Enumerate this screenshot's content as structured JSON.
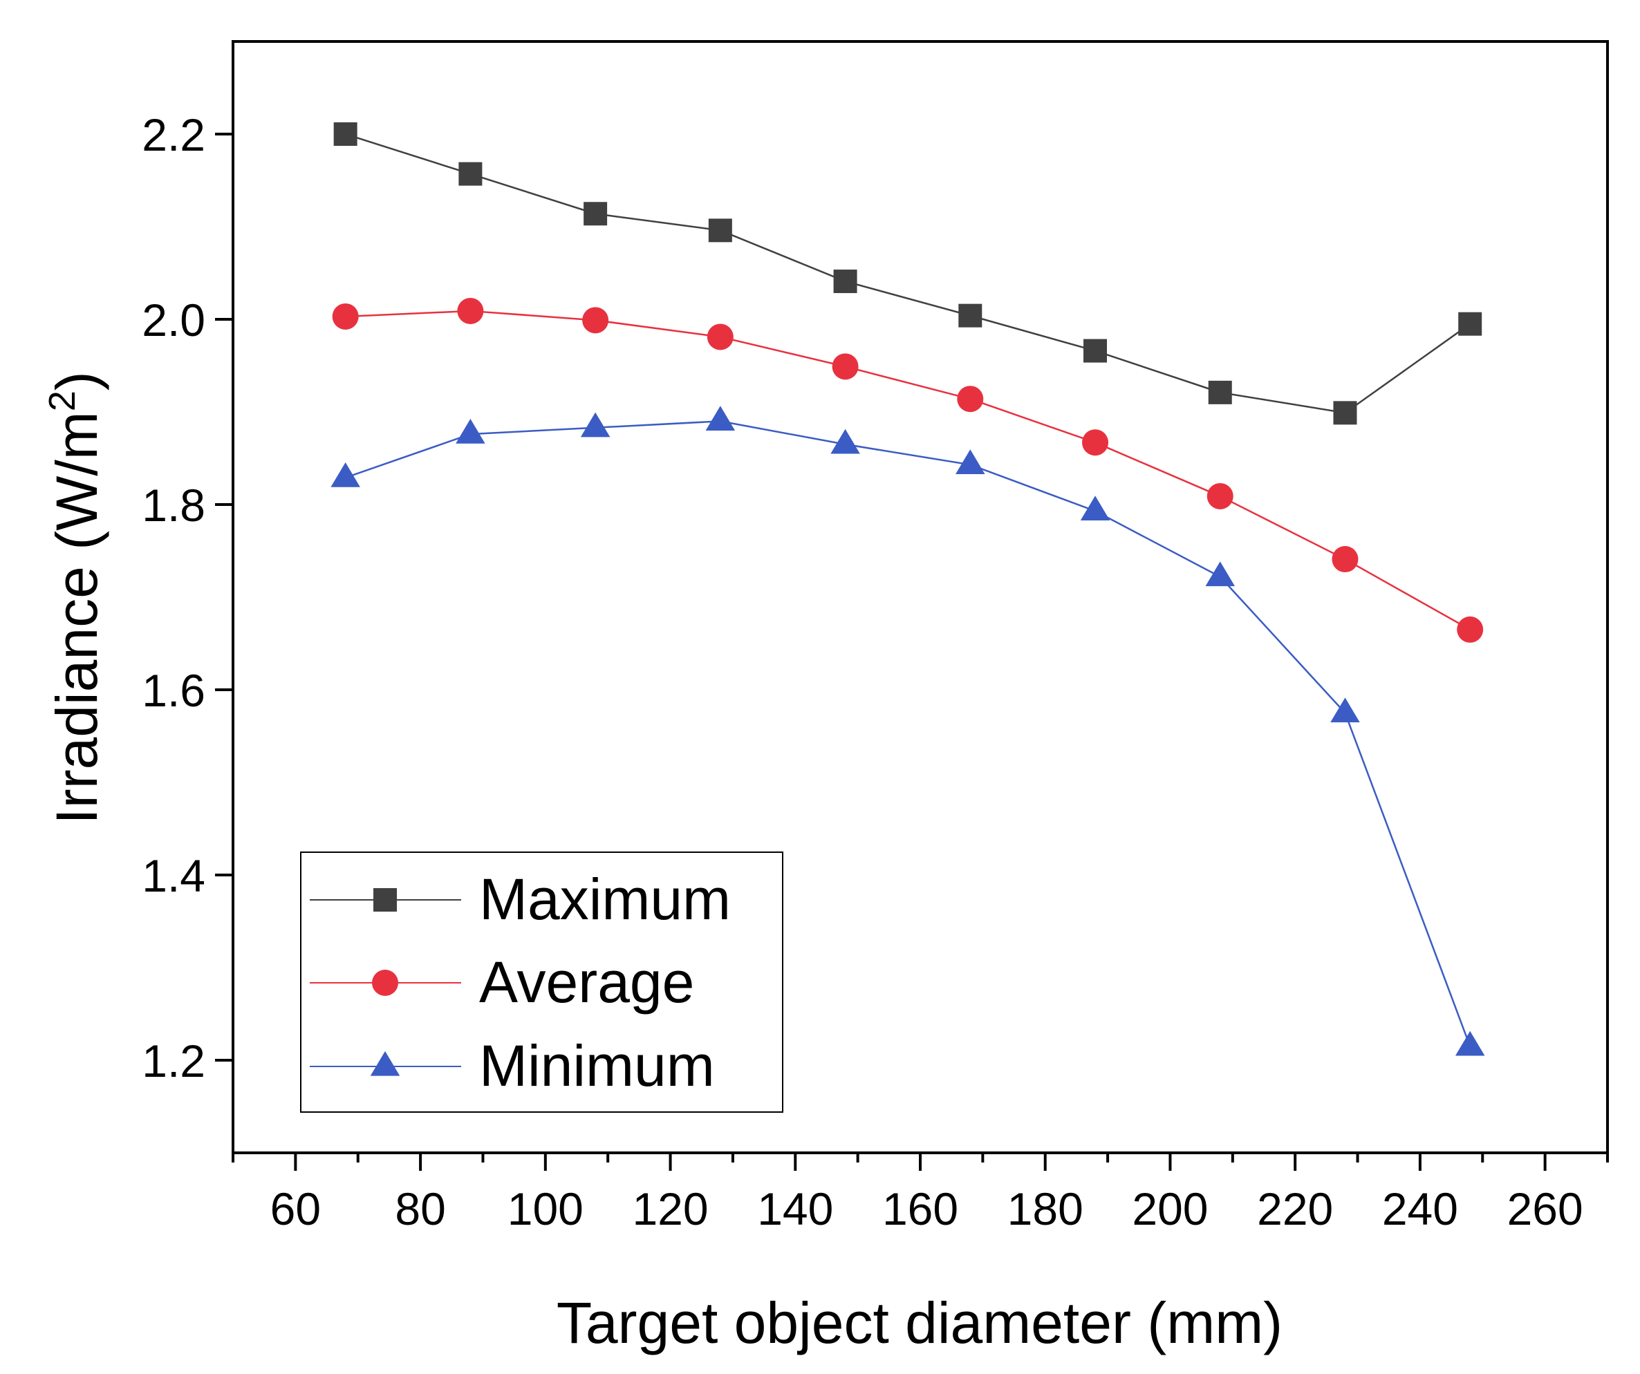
{
  "chart_data": {
    "type": "line",
    "title": "",
    "xlabel": "Target object diameter (mm)",
    "ylabel": {
      "prefix": "Irradiance (W/m",
      "superscript": "2",
      "suffix": ")"
    },
    "xlim": [
      50,
      270
    ],
    "ylim": [
      1.1,
      2.3
    ],
    "x_ticks": [
      60,
      80,
      100,
      120,
      140,
      160,
      180,
      200,
      220,
      240,
      260
    ],
    "x_tick_labels": [
      "60",
      "80",
      "100",
      "120",
      "140",
      "160",
      "180",
      "200",
      "220",
      "240",
      "260"
    ],
    "y_ticks": [
      1.2,
      1.4,
      1.6,
      1.8,
      2.0,
      2.2
    ],
    "y_tick_labels": [
      "1.2",
      "1.4",
      "1.6",
      "1.8",
      "2.0",
      "2.2"
    ],
    "grid": false,
    "legend_position": "bottom-left",
    "x": [
      68,
      88,
      108,
      128,
      148,
      168,
      188,
      208,
      228,
      248
    ],
    "series": [
      {
        "name": "Maximum",
        "marker": "square",
        "color": "#404040",
        "values": [
          2.2,
          2.157,
          2.114,
          2.096,
          2.041,
          2.004,
          1.966,
          1.921,
          1.899,
          1.995
        ]
      },
      {
        "name": "Average",
        "marker": "circle",
        "color": "#e8313f",
        "values": [
          2.003,
          2.009,
          1.999,
          1.981,
          1.949,
          1.914,
          1.867,
          1.809,
          1.741,
          1.665
        ]
      },
      {
        "name": "Minimum",
        "marker": "triangle",
        "color": "#3b5cc4",
        "values": [
          1.829,
          1.876,
          1.883,
          1.89,
          1.865,
          1.843,
          1.793,
          1.722,
          1.575,
          1.215
        ]
      }
    ]
  }
}
